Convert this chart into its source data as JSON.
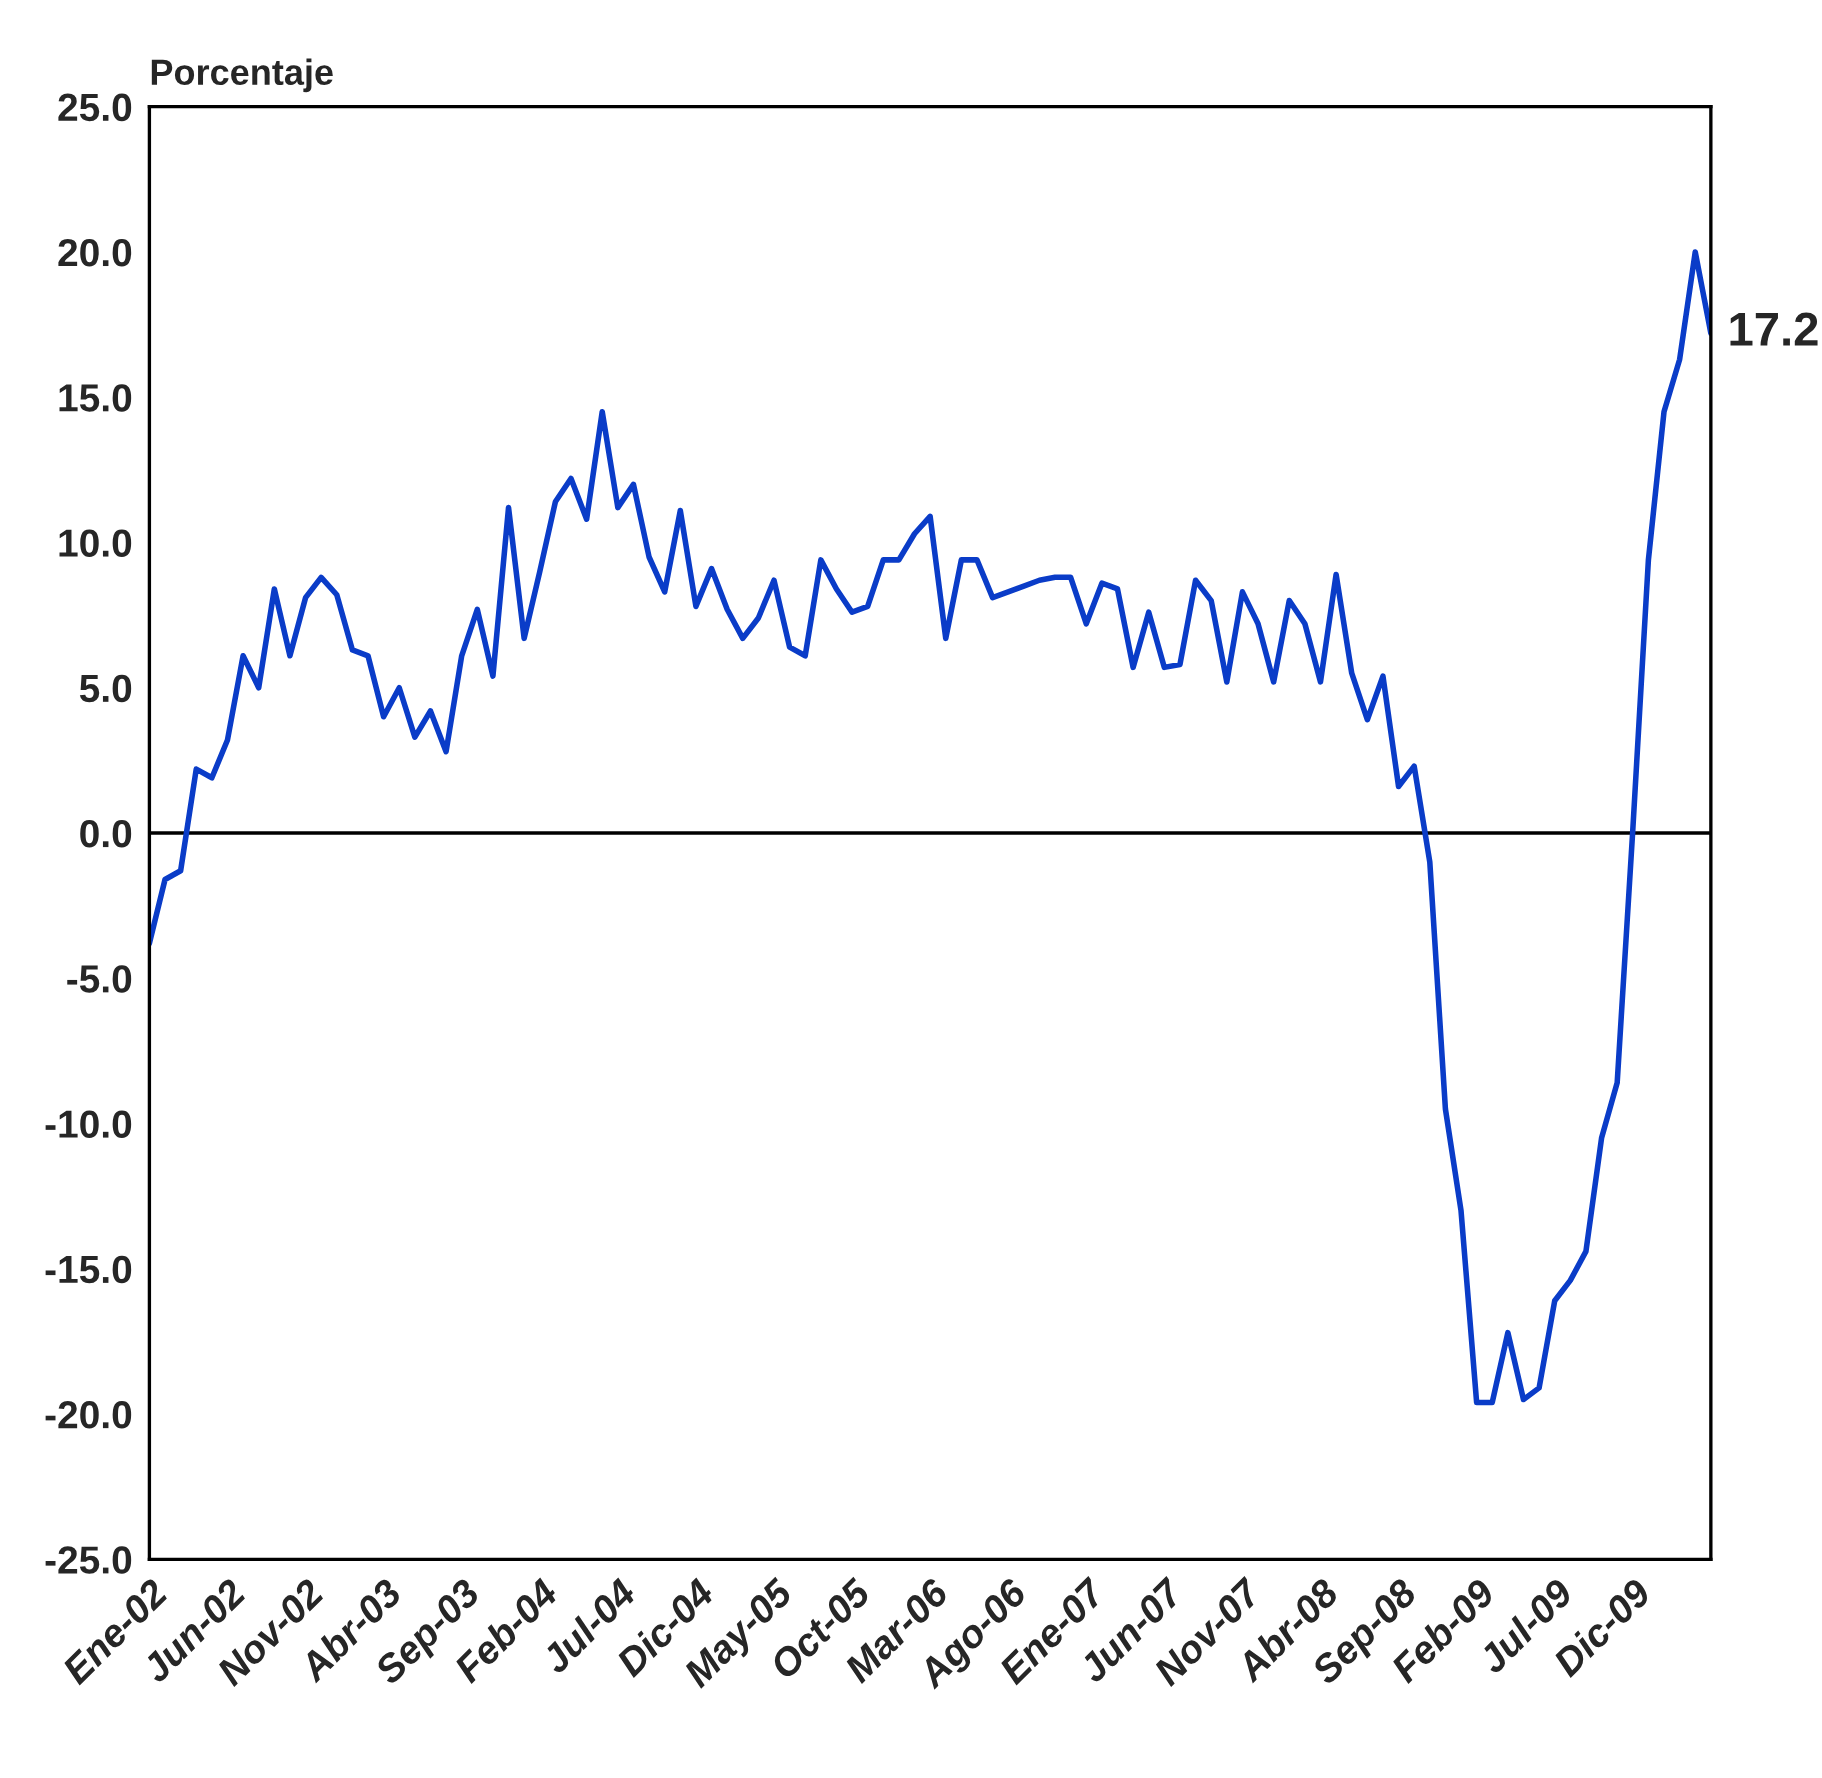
{
  "chart_data": {
    "type": "line",
    "ylabel": "Porcentaje",
    "categories": [
      "Ene-02",
      null,
      null,
      null,
      null,
      "Jun-02",
      null,
      null,
      null,
      null,
      "Nov-02",
      null,
      null,
      null,
      null,
      "Abr-03",
      null,
      null,
      null,
      null,
      "Sep-03",
      null,
      null,
      null,
      null,
      "Feb-04",
      null,
      null,
      null,
      null,
      "Jul-04",
      null,
      null,
      null,
      null,
      "Dic-04",
      null,
      null,
      null,
      null,
      "May-05",
      null,
      null,
      null,
      null,
      "Oct-05",
      null,
      null,
      null,
      null,
      "Mar-06",
      null,
      null,
      null,
      null,
      "Ago-06",
      null,
      null,
      null,
      null,
      "Ene-07",
      null,
      null,
      null,
      null,
      "Jun-07",
      null,
      null,
      null,
      null,
      "Nov-07",
      null,
      null,
      null,
      null,
      "Abr-08",
      null,
      null,
      null,
      null,
      "Sep-08",
      null,
      null,
      null,
      null,
      "Feb-09",
      null,
      null,
      null,
      null,
      "Jul-09",
      null,
      null,
      null,
      null,
      "Dic-09",
      null,
      null,
      null,
      null,
      null
    ],
    "series": [
      {
        "color": "#0a3cc8",
        "values": [
          -3.8,
          -1.6,
          -1.3,
          2.2,
          1.9,
          3.2,
          6.1,
          5.0,
          8.4,
          6.1,
          8.1,
          8.8,
          8.2,
          6.3,
          6.1,
          4.0,
          5.0,
          3.3,
          4.2,
          2.8,
          6.1,
          7.7,
          5.4,
          11.2,
          6.7,
          9.0,
          11.4,
          12.2,
          10.8,
          14.5,
          11.2,
          12.0,
          9.5,
          8.3,
          11.1,
          7.8,
          9.1,
          7.7,
          6.7,
          7.4,
          8.7,
          6.4,
          6.1,
          9.4,
          8.4,
          7.6,
          7.8,
          9.4,
          9.4,
          10.3,
          10.9,
          6.7,
          9.4,
          9.4,
          8.1,
          8.3,
          8.5,
          8.7,
          8.8,
          8.8,
          7.2,
          8.6,
          8.4,
          5.7,
          7.6,
          5.7,
          5.8,
          8.7,
          8.0,
          5.2,
          8.3,
          7.2,
          5.2,
          8.0,
          7.2,
          5.2,
          8.9,
          5.5,
          3.9,
          5.4,
          1.6,
          2.3,
          -1.0,
          -9.5,
          -13.0,
          -19.6,
          -19.6,
          -17.2,
          -19.5,
          -19.1,
          -16.1,
          -15.4,
          -14.4,
          -10.5,
          -8.6,
          0.1,
          9.4,
          14.5,
          16.3,
          20.0,
          17.2
        ],
        "value_labels": [
          null,
          null,
          null,
          null,
          null,
          null,
          null,
          null,
          null,
          null,
          null,
          null,
          null,
          null,
          null,
          null,
          null,
          null,
          null,
          null,
          null,
          null,
          null,
          null,
          null,
          null,
          null,
          null,
          null,
          null,
          null,
          null,
          null,
          null,
          null,
          null,
          null,
          null,
          null,
          null,
          null,
          null,
          null,
          null,
          null,
          null,
          null,
          null,
          null,
          null,
          null,
          null,
          null,
          null,
          null,
          null,
          null,
          null,
          null,
          null,
          null,
          null,
          null,
          null,
          null,
          null,
          null,
          null,
          null,
          null,
          null,
          null,
          null,
          null,
          null,
          null,
          null,
          null,
          null,
          null,
          null,
          null,
          null,
          null,
          null,
          null,
          null,
          null,
          null,
          null,
          null,
          null,
          null,
          null,
          null,
          null,
          null,
          null,
          null,
          null,
          "17.2"
        ]
      }
    ],
    "ylim": [
      -25,
      25
    ],
    "yticks": [
      {
        "value": 25,
        "label": "25.0"
      },
      {
        "value": 20,
        "label": "20.0"
      },
      {
        "value": 15,
        "label": "15.0"
      },
      {
        "value": 10,
        "label": "10.0"
      },
      {
        "value": 5,
        "label": "5.0"
      },
      {
        "value": 0,
        "label": "0.0"
      },
      {
        "value": -5,
        "label": "-5.0"
      },
      {
        "value": -10,
        "label": "-10.0"
      },
      {
        "value": -15,
        "label": "-15.0"
      },
      {
        "value": -20,
        "label": "-20.0"
      },
      {
        "value": -25,
        "label": "-25.0"
      }
    ],
    "ref_lines": [
      {
        "axis": "y",
        "value": 0,
        "color": "#000000"
      }
    ],
    "grid": false,
    "legend": false,
    "marker": "none",
    "line_style": "solid"
  }
}
